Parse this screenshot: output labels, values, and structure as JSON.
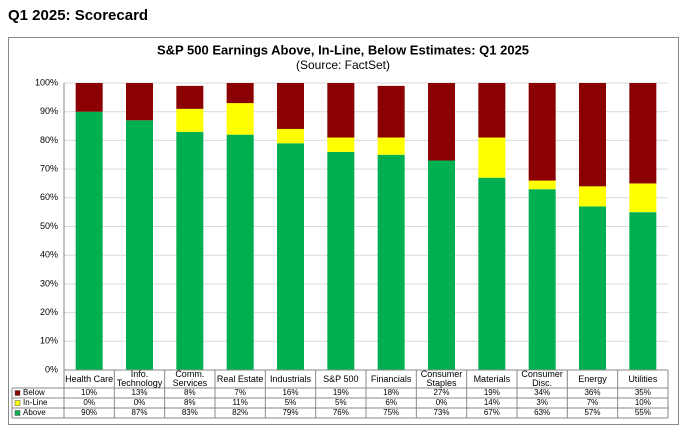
{
  "page_title": "Q1 2025: Scorecard",
  "chart_data": {
    "type": "stacked-bar",
    "title": "S&P 500 Earnings Above, In-Line, Below Estimates: Q1 2025",
    "subtitle": "(Source: FactSet)",
    "categories": [
      "Health Care",
      "Info. Technology",
      "Comm. Services",
      "Real Estate",
      "Industrials",
      "S&P 500",
      "Financials",
      "Consumer Staples",
      "Materials",
      "Consumer Disc.",
      "Energy",
      "Utilities"
    ],
    "series": [
      {
        "name": "Below",
        "color": "#8b0000",
        "values": [
          10,
          13,
          8,
          7,
          16,
          19,
          18,
          27,
          19,
          34,
          36,
          35
        ],
        "value_labels": [
          "10%",
          "13%",
          "8%",
          "7%",
          "16%",
          "19%",
          "18%",
          "27%",
          "19%",
          "34%",
          "36%",
          "35%"
        ]
      },
      {
        "name": "In-Line",
        "color": "#ffff00",
        "values": [
          0,
          0,
          8,
          11,
          5,
          5,
          6,
          0,
          14,
          3,
          7,
          10
        ],
        "value_labels": [
          "0%",
          "0%",
          "8%",
          "11%",
          "5%",
          "5%",
          "6%",
          "0%",
          "14%",
          "3%",
          "7%",
          "10%"
        ]
      },
      {
        "name": "Above",
        "color": "#00b050",
        "values": [
          90,
          87,
          83,
          82,
          79,
          76,
          75,
          73,
          67,
          63,
          57,
          55
        ],
        "value_labels": [
          "90%",
          "87%",
          "83%",
          "82%",
          "79%",
          "76%",
          "75%",
          "73%",
          "67%",
          "63%",
          "57%",
          "55%"
        ]
      }
    ],
    "ylim": [
      0,
      100
    ],
    "yticks": [
      {
        "value": 0,
        "label": "0%"
      },
      {
        "value": 10,
        "label": "10%"
      },
      {
        "value": 20,
        "label": "20%"
      },
      {
        "value": 30,
        "label": "30%"
      },
      {
        "value": 40,
        "label": "40%"
      },
      {
        "value": 50,
        "label": "50%"
      },
      {
        "value": 60,
        "label": "60%"
      },
      {
        "value": 70,
        "label": "70%"
      },
      {
        "value": 80,
        "label": "80%"
      },
      {
        "value": 90,
        "label": "90%"
      },
      {
        "value": 100,
        "label": "100%"
      }
    ],
    "grid": true
  }
}
